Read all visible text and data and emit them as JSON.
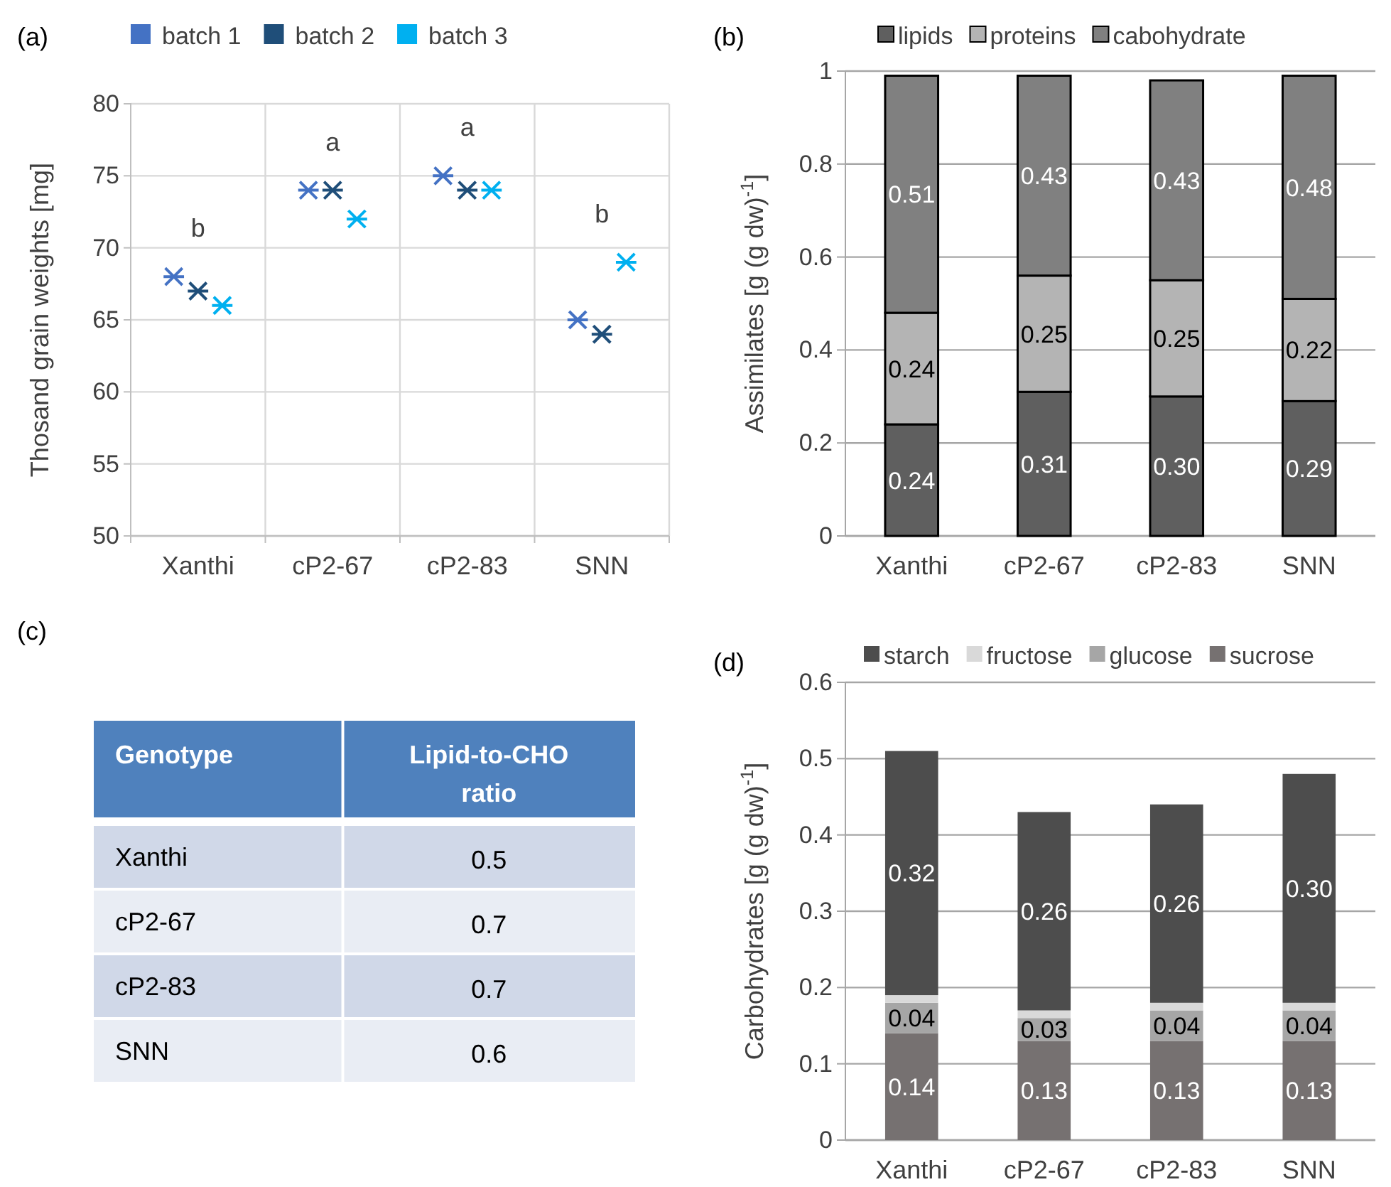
{
  "chart_data": [
    {
      "type": "scatter",
      "title": "(a)",
      "ylabel": "Thosand grain weights [mg]",
      "categories": [
        "Xanthi",
        "cP2-67",
        "cP2-83",
        "SNN"
      ],
      "ylim": [
        50,
        80
      ],
      "yticks": [
        50,
        55,
        60,
        65,
        70,
        75,
        80
      ],
      "grid": true,
      "legend": "top",
      "marker": "cross",
      "series": [
        {
          "name": "batch 1",
          "color": "#4472c4",
          "values": [
            68,
            74,
            75,
            65
          ]
        },
        {
          "name": "batch 2",
          "color": "#1f4e79",
          "values": [
            67,
            74,
            74,
            64
          ]
        },
        {
          "name": "batch 3",
          "color": "#00b0f0",
          "values": [
            66,
            72,
            74,
            69
          ]
        }
      ],
      "annotations": [
        "b",
        "a",
        "a",
        "b"
      ]
    },
    {
      "type": "bar",
      "stacked": true,
      "title": "(b)",
      "ylabel": "Assimilates [g (g dw)$^{-1}$]",
      "categories": [
        "Xanthi",
        "cP2-67",
        "cP2-83",
        "SNN"
      ],
      "ylim": [
        0,
        1
      ],
      "yticks": [
        0,
        0.2,
        0.4,
        0.6,
        0.8,
        1
      ],
      "grid": "y",
      "legend": "top",
      "series": [
        {
          "name": "lipids",
          "color": "#5f5f5f",
          "values": [
            0.24,
            0.31,
            0.3,
            0.29
          ],
          "value_labels": [
            "0.24",
            "0.31",
            "0.30",
            "0.29"
          ]
        },
        {
          "name": "proteins",
          "color": "#b4b4b4",
          "values": [
            0.24,
            0.25,
            0.25,
            0.22
          ],
          "value_labels": [
            "0.24",
            "0.25",
            "0.25",
            "0.22"
          ]
        },
        {
          "name": "cabohydrate",
          "color": "#808080",
          "values": [
            0.51,
            0.43,
            0.43,
            0.48
          ],
          "value_labels": [
            "0.51",
            "0.43",
            "0.43",
            "0.48"
          ]
        }
      ]
    },
    {
      "type": "other",
      "title": "(c)",
      "annotations": [
        "Genotype",
        "Lipid-to-CHO ratio"
      ],
      "categories": [
        "Xanthi",
        "cP2-67",
        "cP2-83",
        "SNN"
      ],
      "values": [
        0.5,
        0.7,
        0.7,
        0.6
      ],
      "data_labels": true
    },
    {
      "type": "bar",
      "stacked": true,
      "title": "(d)",
      "ylabel": "Carbohydrates [g (g dw)$^{-1}$]",
      "categories": [
        "Xanthi",
        "cP2-67",
        "cP2-83",
        "SNN"
      ],
      "ylim": [
        0,
        0.6
      ],
      "yticks": [
        0,
        0.1,
        0.2,
        0.3,
        0.4,
        0.5,
        0.6
      ],
      "grid": "y",
      "legend": "top",
      "series": [
        {
          "name": "sucrose",
          "color": "#767171",
          "values": [
            0.14,
            0.13,
            0.13,
            0.13
          ],
          "value_labels": [
            "0.14",
            "0.13",
            "0.13",
            "0.13"
          ]
        },
        {
          "name": "glucose",
          "color": "#a6a6a6",
          "values": [
            0.04,
            0.03,
            0.04,
            0.04
          ],
          "value_labels": [
            "0.04",
            "0.03",
            "0.04",
            "0.04"
          ]
        },
        {
          "name": "fructose",
          "color": "#d9d9d9",
          "values": [
            0.01,
            0.01,
            0.01,
            0.01
          ],
          "value_labels": [
            null,
            null,
            null,
            null
          ]
        },
        {
          "name": "starch",
          "color": "#4d4d4d",
          "values": [
            0.32,
            0.26,
            0.26,
            0.3
          ],
          "value_labels": [
            "0.32",
            "0.26",
            "0.26",
            "0.30"
          ]
        }
      ]
    }
  ]
}
